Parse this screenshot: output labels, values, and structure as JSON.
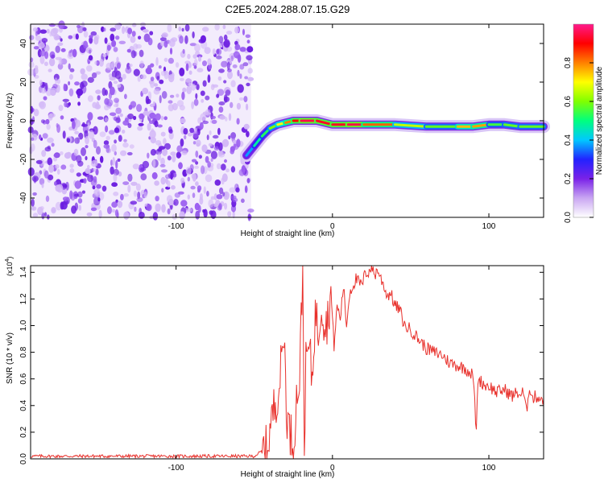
{
  "figure_title": "C2E5.2024.288.07.15.G29",
  "chart_data": [
    {
      "type": "heatmap",
      "title": "C2E5.2024.288.07.15.G29",
      "xlabel": "Height of straight line (km)",
      "ylabel": "Frequency (Hz)",
      "xlim": [
        -193,
        135
      ],
      "ylim": [
        -50,
        50
      ],
      "x_ticks": [
        -100,
        0,
        100
      ],
      "y_ticks": [
        -40,
        -20,
        0,
        20,
        40
      ],
      "colorbar": {
        "label": "Normalized spectral amplitude",
        "range": [
          0,
          1
        ],
        "ticks": [
          "0.0",
          "0.2",
          "0.4",
          "0.6",
          "0.8"
        ],
        "colors": [
          "#ffffff",
          "#c9a6f2",
          "#7a22e8",
          "#2222ff",
          "#00c8ff",
          "#00ff7f",
          "#80ff00",
          "#ffff00",
          "#ff8000",
          "#ff0000",
          "#ff1a8c"
        ]
      },
      "noise_region_x": [
        -193,
        -52
      ],
      "signal_track": {
        "x": [
          -55,
          -50,
          -45,
          -40,
          -35,
          -30,
          -25,
          -20,
          -10,
          0,
          10,
          20,
          40,
          60,
          80,
          90,
          100,
          110,
          120,
          135
        ],
        "y": [
          -18,
          -13,
          -8,
          -4,
          -2,
          -1,
          0,
          0,
          0,
          -2,
          -2,
          -2,
          -2,
          -3,
          -3,
          -3,
          -2,
          -2,
          -3,
          -3
        ],
        "amplitude": [
          0.3,
          0.45,
          0.5,
          0.55,
          0.65,
          0.75,
          0.85,
          0.95,
          0.95,
          0.9,
          0.95,
          0.95,
          0.7,
          0.6,
          0.55,
          0.95,
          0.6,
          0.5,
          0.65,
          0.5
        ]
      }
    },
    {
      "type": "line",
      "xlabel": "Height of straight line (km)",
      "ylabel": "SNR (10 * v/v)",
      "scale_label": "(x10",
      "scale_exponent": "4",
      "xlim": [
        -193,
        135
      ],
      "ylim": [
        0,
        1.45
      ],
      "x_ticks": [
        -100,
        0,
        100
      ],
      "y_ticks": [
        "0.0",
        "0.2",
        "0.4",
        "0.6",
        "0.8",
        "1.0",
        "1.2",
        "1.4"
      ],
      "line_color": "#e8312c",
      "series": [
        {
          "x": [
            -193,
            -170,
            -150,
            -130,
            -110,
            -90,
            -70,
            -50,
            -42,
            -38,
            -34,
            -31,
            -29,
            -27,
            -25,
            -23,
            -21,
            -19,
            -18,
            -17,
            -15,
            -13,
            -11,
            -9,
            -7,
            -5,
            -3,
            -1,
            1,
            3,
            5,
            7,
            9,
            11,
            13,
            15,
            17,
            19,
            21,
            23,
            25,
            27,
            29,
            31,
            33,
            35,
            37,
            40,
            43,
            46,
            50,
            55,
            60,
            65,
            70,
            75,
            80,
            85,
            88,
            90,
            92,
            93,
            95,
            98,
            100,
            105,
            110,
            115,
            118,
            120,
            122,
            124,
            126,
            128,
            130,
            135
          ],
          "y": [
            0.02,
            0.02,
            0.02,
            0.02,
            0.02,
            0.02,
            0.02,
            0.02,
            0.08,
            0.35,
            0.55,
            0.95,
            0.3,
            0.2,
            0.1,
            0.45,
            0.6,
            1.45,
            0.1,
            0.7,
            0.85,
            0.6,
            1.1,
            0.95,
            1.2,
            1.0,
            1.05,
            1.25,
            0.85,
            1.15,
            1.05,
            1.3,
            1.0,
            1.25,
            1.3,
            1.35,
            1.32,
            1.3,
            1.4,
            1.4,
            1.45,
            1.38,
            1.42,
            1.35,
            1.3,
            1.22,
            1.25,
            1.15,
            1.12,
            1.0,
            0.97,
            0.9,
            0.83,
            0.8,
            0.78,
            0.72,
            0.7,
            0.68,
            0.65,
            0.62,
            0.2,
            0.6,
            0.58,
            0.55,
            0.55,
            0.5,
            0.52,
            0.47,
            0.5,
            0.48,
            0.5,
            0.35,
            0.55,
            0.45,
            0.47,
            0.45
          ]
        }
      ]
    }
  ]
}
